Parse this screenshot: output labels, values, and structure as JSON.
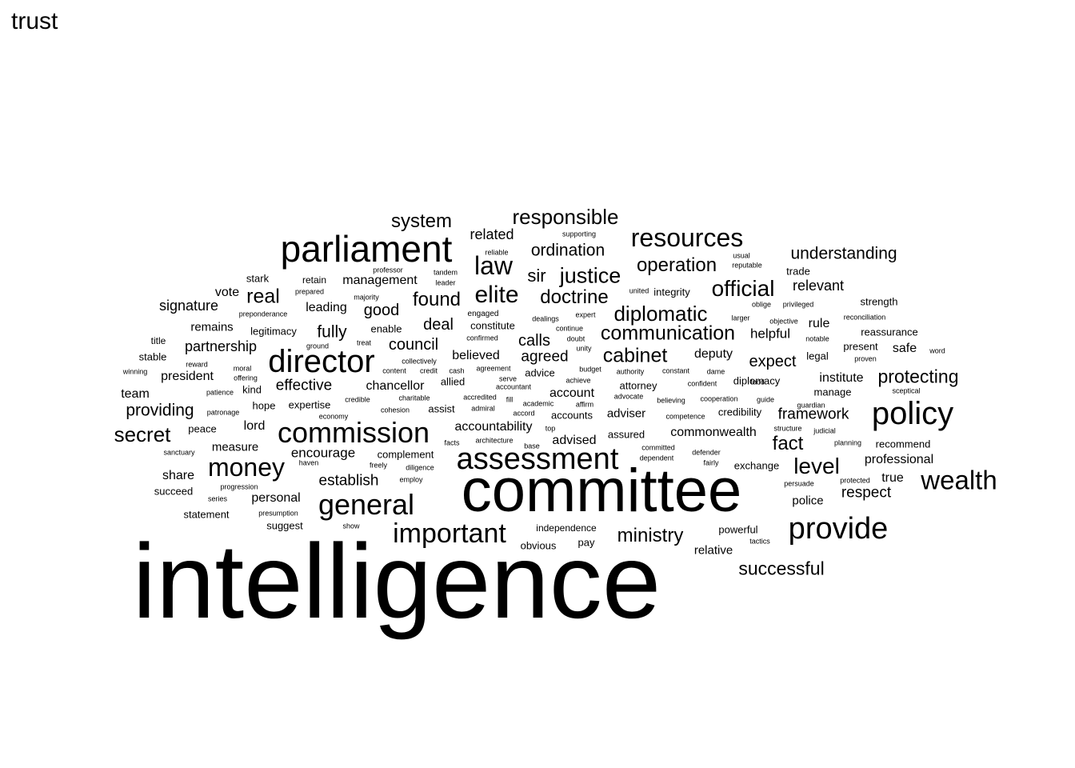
{
  "title": "trust",
  "words": [
    {
      "text": "intelligence",
      "size": 132
    },
    {
      "text": "committee",
      "size": 76
    },
    {
      "text": "parliament",
      "size": 46
    },
    {
      "text": "director",
      "size": 40
    },
    {
      "text": "assessment",
      "size": 38
    },
    {
      "text": "commission",
      "size": 36
    },
    {
      "text": "policy",
      "size": 40
    },
    {
      "text": "general",
      "size": 36
    },
    {
      "text": "provide",
      "size": 38
    },
    {
      "text": "money",
      "size": 32
    },
    {
      "text": "important",
      "size": 34
    },
    {
      "text": "wealth",
      "size": 33
    },
    {
      "text": "resources",
      "size": 32
    },
    {
      "text": "law",
      "size": 32
    },
    {
      "text": "elite",
      "size": 30
    },
    {
      "text": "secret",
      "size": 26
    },
    {
      "text": "level",
      "size": 28
    },
    {
      "text": "official",
      "size": 28
    },
    {
      "text": "responsible",
      "size": 26
    },
    {
      "text": "system",
      "size": 24
    },
    {
      "text": "justice",
      "size": 27
    },
    {
      "text": "doctrine",
      "size": 24
    },
    {
      "text": "diplomatic",
      "size": 26
    },
    {
      "text": "communication",
      "size": 25
    },
    {
      "text": "operation",
      "size": 24
    },
    {
      "text": "cabinet",
      "size": 25
    },
    {
      "text": "real",
      "size": 25
    },
    {
      "text": "found",
      "size": 24
    },
    {
      "text": "ministry",
      "size": 24
    },
    {
      "text": "successful",
      "size": 23
    },
    {
      "text": "protecting",
      "size": 23
    },
    {
      "text": "understanding",
      "size": 21
    },
    {
      "text": "ordination",
      "size": 21
    },
    {
      "text": "sir",
      "size": 22
    },
    {
      "text": "fact",
      "size": 24
    },
    {
      "text": "expect",
      "size": 20
    },
    {
      "text": "framework",
      "size": 19
    },
    {
      "text": "fully",
      "size": 21
    },
    {
      "text": "deal",
      "size": 20
    },
    {
      "text": "calls",
      "size": 20
    },
    {
      "text": "agreed",
      "size": 19
    },
    {
      "text": "council",
      "size": 20
    },
    {
      "text": "good",
      "size": 20
    },
    {
      "text": "providing",
      "size": 21
    },
    {
      "text": "establish",
      "size": 19
    },
    {
      "text": "effective",
      "size": 19
    },
    {
      "text": "signature",
      "size": 18
    },
    {
      "text": "partnership",
      "size": 18
    },
    {
      "text": "encourage",
      "size": 17
    },
    {
      "text": "respect",
      "size": 19
    },
    {
      "text": "relevant",
      "size": 18
    },
    {
      "text": "related",
      "size": 18
    },
    {
      "text": "management",
      "size": 16
    },
    {
      "text": "commonwealth",
      "size": 16
    },
    {
      "text": "accountability",
      "size": 16
    },
    {
      "text": "chancellor",
      "size": 16
    },
    {
      "text": "believed",
      "size": 16
    },
    {
      "text": "helpful",
      "size": 17
    },
    {
      "text": "deputy",
      "size": 16
    },
    {
      "text": "institute",
      "size": 16
    },
    {
      "text": "professional",
      "size": 16
    },
    {
      "text": "advised",
      "size": 16
    },
    {
      "text": "account",
      "size": 16
    },
    {
      "text": "adviser",
      "size": 15
    },
    {
      "text": "president",
      "size": 16
    },
    {
      "text": "remains",
      "size": 15
    },
    {
      "text": "leading",
      "size": 16
    },
    {
      "text": "share",
      "size": 16
    },
    {
      "text": "measure",
      "size": 15
    },
    {
      "text": "personal",
      "size": 16
    },
    {
      "text": "police",
      "size": 15
    },
    {
      "text": "relative",
      "size": 15
    },
    {
      "text": "powerful",
      "size": 13
    },
    {
      "text": "lord",
      "size": 16
    },
    {
      "text": "vote",
      "size": 16
    },
    {
      "text": "rule",
      "size": 16
    },
    {
      "text": "safe",
      "size": 16
    },
    {
      "text": "true",
      "size": 16
    },
    {
      "text": "team",
      "size": 16
    },
    {
      "text": "manage",
      "size": 13
    },
    {
      "text": "legal",
      "size": 13
    },
    {
      "text": "present",
      "size": 13
    },
    {
      "text": "strength",
      "size": 13
    },
    {
      "text": "reassurance",
      "size": 13
    },
    {
      "text": "recommend",
      "size": 13
    },
    {
      "text": "exchange",
      "size": 13
    },
    {
      "text": "diplomacy",
      "size": 13
    },
    {
      "text": "credibility",
      "size": 13
    },
    {
      "text": "assured",
      "size": 13
    },
    {
      "text": "accounts",
      "size": 13
    },
    {
      "text": "expertise",
      "size": 13
    },
    {
      "text": "complement",
      "size": 13
    },
    {
      "text": "independence",
      "size": 12
    },
    {
      "text": "statement",
      "size": 13
    },
    {
      "text": "succeed",
      "size": 13
    },
    {
      "text": "peace",
      "size": 13
    },
    {
      "text": "hope",
      "size": 13
    },
    {
      "text": "stable",
      "size": 13
    },
    {
      "text": "title",
      "size": 12
    },
    {
      "text": "legitimacy",
      "size": 13
    },
    {
      "text": "enable",
      "size": 13
    },
    {
      "text": "constitute",
      "size": 13
    },
    {
      "text": "retain",
      "size": 12
    },
    {
      "text": "stark",
      "size": 13
    },
    {
      "text": "kind",
      "size": 13
    },
    {
      "text": "advice",
      "size": 13
    },
    {
      "text": "attorney",
      "size": 13
    },
    {
      "text": "integrity",
      "size": 13
    },
    {
      "text": "trade",
      "size": 13
    },
    {
      "text": "suggest",
      "size": 13
    },
    {
      "text": "obvious",
      "size": 13
    },
    {
      "text": "pay",
      "size": 13
    },
    {
      "text": "allied",
      "size": 13
    },
    {
      "text": "assist",
      "size": 13
    },
    {
      "text": "supporting",
      "size": 9
    },
    {
      "text": "reliable",
      "size": 9
    },
    {
      "text": "professor",
      "size": 9
    },
    {
      "text": "tandem",
      "size": 9
    },
    {
      "text": "leader",
      "size": 9
    },
    {
      "text": "usual",
      "size": 9
    },
    {
      "text": "reputable",
      "size": 9
    },
    {
      "text": "united",
      "size": 9
    },
    {
      "text": "preponderance",
      "size": 9
    },
    {
      "text": "prepared",
      "size": 9
    },
    {
      "text": "majority",
      "size": 9
    },
    {
      "text": "engaged",
      "size": 10
    },
    {
      "text": "expert",
      "size": 9
    },
    {
      "text": "larger",
      "size": 9
    },
    {
      "text": "objective",
      "size": 9
    },
    {
      "text": "oblige",
      "size": 9
    },
    {
      "text": "privileged",
      "size": 9
    },
    {
      "text": "reconciliation",
      "size": 9
    },
    {
      "text": "dealings",
      "size": 9
    },
    {
      "text": "continue",
      "size": 9
    },
    {
      "text": "doubt",
      "size": 9
    },
    {
      "text": "unity",
      "size": 9
    },
    {
      "text": "notable",
      "size": 9
    },
    {
      "text": "word",
      "size": 9
    },
    {
      "text": "proven",
      "size": 9
    },
    {
      "text": "ground",
      "size": 9
    },
    {
      "text": "treat",
      "size": 9
    },
    {
      "text": "confirmed",
      "size": 9
    },
    {
      "text": "collectively",
      "size": 9
    },
    {
      "text": "content",
      "size": 9
    },
    {
      "text": "credit",
      "size": 9
    },
    {
      "text": "cash",
      "size": 9
    },
    {
      "text": "agreement",
      "size": 9
    },
    {
      "text": "budget",
      "size": 9
    },
    {
      "text": "authority",
      "size": 9
    },
    {
      "text": "constant",
      "size": 9
    },
    {
      "text": "dame",
      "size": 9
    },
    {
      "text": "food",
      "size": 9
    },
    {
      "text": "reward",
      "size": 9
    },
    {
      "text": "moral",
      "size": 9
    },
    {
      "text": "winning",
      "size": 9
    },
    {
      "text": "offering",
      "size": 9
    },
    {
      "text": "serve",
      "size": 9
    },
    {
      "text": "achieve",
      "size": 9
    },
    {
      "text": "confident",
      "size": 9
    },
    {
      "text": "accountant",
      "size": 9
    },
    {
      "text": "sceptical",
      "size": 9
    },
    {
      "text": "patience",
      "size": 9
    },
    {
      "text": "credible",
      "size": 9
    },
    {
      "text": "charitable",
      "size": 9
    },
    {
      "text": "accredited",
      "size": 9
    },
    {
      "text": "fill",
      "size": 9
    },
    {
      "text": "advocate",
      "size": 9
    },
    {
      "text": "believing",
      "size": 9
    },
    {
      "text": "cooperation",
      "size": 9
    },
    {
      "text": "guide",
      "size": 9
    },
    {
      "text": "guardian",
      "size": 9
    },
    {
      "text": "academic",
      "size": 9
    },
    {
      "text": "affirm",
      "size": 9
    },
    {
      "text": "patronage",
      "size": 9
    },
    {
      "text": "cohesion",
      "size": 9
    },
    {
      "text": "admiral",
      "size": 9
    },
    {
      "text": "accord",
      "size": 9
    },
    {
      "text": "competence",
      "size": 9
    },
    {
      "text": "economy",
      "size": 9
    },
    {
      "text": "top",
      "size": 9
    },
    {
      "text": "structure",
      "size": 9
    },
    {
      "text": "judicial",
      "size": 9
    },
    {
      "text": "facts",
      "size": 9
    },
    {
      "text": "architecture",
      "size": 9
    },
    {
      "text": "base",
      "size": 9
    },
    {
      "text": "committed",
      "size": 9
    },
    {
      "text": "planning",
      "size": 9
    },
    {
      "text": "sanctuary",
      "size": 9
    },
    {
      "text": "defender",
      "size": 9
    },
    {
      "text": "dependent",
      "size": 9
    },
    {
      "text": "haven",
      "size": 9
    },
    {
      "text": "freely",
      "size": 9
    },
    {
      "text": "diligence",
      "size": 9
    },
    {
      "text": "fairly",
      "size": 9
    },
    {
      "text": "employ",
      "size": 9
    },
    {
      "text": "progression",
      "size": 9
    },
    {
      "text": "persuade",
      "size": 9
    },
    {
      "text": "protected",
      "size": 9
    },
    {
      "text": "series",
      "size": 9
    },
    {
      "text": "presumption",
      "size": 9
    },
    {
      "text": "show",
      "size": 9
    },
    {
      "text": "tactics",
      "size": 9
    }
  ]
}
